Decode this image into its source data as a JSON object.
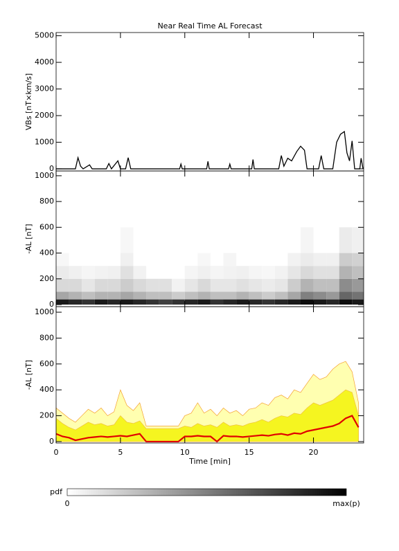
{
  "chart_data": [
    {
      "type": "line",
      "title": "Near Real Time AL Forecast",
      "ylabel": "VBs [nT×km/s]",
      "xlim": [
        0,
        23.9
      ],
      "xticks": [
        0,
        5,
        10,
        15,
        20
      ],
      "ylim": [
        -80,
        5120
      ],
      "yticks": [
        0,
        1000,
        2000,
        3000,
        4000,
        5000
      ],
      "x": [
        0,
        1.5,
        1.7,
        1.9,
        2.1,
        2.6,
        2.8,
        3.9,
        4.1,
        4.3,
        4.8,
        5.0,
        5.4,
        5.6,
        5.8,
        9.6,
        9.7,
        9.8,
        11.7,
        11.8,
        11.9,
        13.4,
        13.5,
        13.6,
        15.2,
        15.3,
        15.4,
        17.3,
        17.5,
        17.7,
        18.0,
        18.3,
        18.7,
        19.0,
        19.3,
        19.5,
        20.4,
        20.6,
        20.8,
        21.5,
        21.8,
        22.1,
        22.4,
        22.6,
        22.8,
        23.0,
        23.2,
        23.6,
        23.7,
        23.85
      ],
      "series": [
        {
          "color": "#000000",
          "values": [
            0,
            0,
            420,
            100,
            0,
            150,
            0,
            0,
            200,
            0,
            300,
            0,
            0,
            420,
            0,
            0,
            180,
            0,
            0,
            280,
            0,
            0,
            180,
            0,
            0,
            350,
            0,
            0,
            500,
            100,
            400,
            300,
            650,
            850,
            700,
            0,
            0,
            500,
            0,
            0,
            1000,
            1300,
            1400,
            600,
            300,
            1050,
            0,
            0,
            400,
            0
          ]
        }
      ]
    },
    {
      "type": "heatmap",
      "ylabel": "-AL [nT]",
      "xlim": [
        0,
        23.9
      ],
      "xticks": [
        0,
        5,
        10,
        15,
        20
      ],
      "ylim": [
        -16,
        1037
      ],
      "yticks": [
        0,
        200,
        400,
        600,
        800,
        1000
      ],
      "x_edges": [
        0,
        1,
        2,
        3,
        4,
        5,
        6,
        7,
        8,
        9,
        10,
        11,
        12,
        13,
        14,
        15,
        16,
        17,
        18,
        19,
        20,
        21,
        22,
        23,
        23.9
      ],
      "y_edges": [
        0,
        40,
        100,
        200,
        300,
        400,
        600
      ],
      "values": [
        [
          0.9,
          0.85,
          0.8,
          0.9,
          0.85,
          0.9,
          0.85,
          0.8,
          0.75,
          0.8,
          0.85,
          0.9,
          0.8,
          0.85,
          0.9,
          0.85,
          0.8,
          0.85,
          0.9,
          0.95,
          0.9,
          0.85,
          0.95,
          0.9
        ],
        [
          0.35,
          0.3,
          0.25,
          0.3,
          0.3,
          0.35,
          0.3,
          0.25,
          0.25,
          0.2,
          0.25,
          0.3,
          0.25,
          0.25,
          0.3,
          0.25,
          0.2,
          0.25,
          0.35,
          0.5,
          0.45,
          0.4,
          0.6,
          0.55
        ],
        [
          0.15,
          0.15,
          0.1,
          0.15,
          0.15,
          0.2,
          0.15,
          0.12,
          0.12,
          0.05,
          0.1,
          0.15,
          0.1,
          0.1,
          0.12,
          0.1,
          0.08,
          0.1,
          0.2,
          0.3,
          0.25,
          0.25,
          0.45,
          0.4
        ],
        [
          0.08,
          0.06,
          0.04,
          0.05,
          0.06,
          0.12,
          0.05,
          0,
          0,
          0,
          0.04,
          0.06,
          0.04,
          0.05,
          0.06,
          0.04,
          0.03,
          0.05,
          0.1,
          0.15,
          0.12,
          0.12,
          0.3,
          0.25
        ],
        [
          0.03,
          0,
          0,
          0,
          0,
          0.06,
          0,
          0,
          0,
          0,
          0,
          0.03,
          0,
          0.04,
          0,
          0,
          0,
          0,
          0.05,
          0.08,
          0.06,
          0.06,
          0.2,
          0.18
        ],
        [
          0,
          0,
          0,
          0,
          0,
          0.03,
          0,
          0,
          0,
          0,
          0,
          0,
          0,
          0,
          0,
          0,
          0,
          0,
          0,
          0.04,
          0,
          0,
          0.08,
          0.06
        ]
      ],
      "colorbar": {
        "label": "pdf",
        "min_label": "0",
        "max_label": "max(p)"
      }
    },
    {
      "type": "area",
      "ylabel": "-AL [nT]",
      "xlabel": "Time [min]",
      "xlim": [
        0,
        23.9
      ],
      "xticks": [
        0,
        5,
        10,
        15,
        20
      ],
      "ylim": [
        -11,
        1043
      ],
      "yticks": [
        0,
        200,
        400,
        600,
        800,
        1000
      ],
      "x": [
        0,
        0.5,
        1,
        1.5,
        2,
        2.5,
        3,
        3.5,
        4,
        4.5,
        5,
        5.5,
        6,
        6.5,
        7,
        7.5,
        8,
        8.5,
        9,
        9.5,
        10,
        10.5,
        11,
        11.5,
        12,
        12.5,
        13,
        13.5,
        14,
        14.5,
        15,
        15.5,
        16,
        16.5,
        17,
        17.5,
        18,
        18.5,
        19,
        19.5,
        20,
        20.5,
        21,
        21.5,
        22,
        22.5,
        23,
        23.5
      ],
      "series": [
        {
          "style": "fill",
          "color": "#ffffb0",
          "edge": "#f5a030",
          "values": [
            260,
            220,
            180,
            150,
            200,
            250,
            220,
            260,
            200,
            230,
            400,
            280,
            240,
            300,
            120,
            120,
            120,
            120,
            120,
            120,
            200,
            220,
            300,
            220,
            250,
            200,
            260,
            220,
            240,
            200,
            250,
            260,
            300,
            280,
            340,
            360,
            330,
            400,
            380,
            450,
            520,
            480,
            500,
            560,
            600,
            620,
            540,
            300
          ]
        },
        {
          "style": "fill",
          "color": "#f5f520",
          "edge": "#f0c040",
          "values": [
            180,
            140,
            110,
            90,
            120,
            150,
            130,
            140,
            120,
            130,
            200,
            150,
            140,
            160,
            100,
            100,
            100,
            100,
            100,
            100,
            120,
            110,
            140,
            120,
            130,
            110,
            150,
            120,
            130,
            120,
            140,
            150,
            170,
            150,
            180,
            200,
            190,
            220,
            210,
            260,
            300,
            280,
            300,
            320,
            360,
            400,
            380,
            200
          ]
        },
        {
          "style": "line",
          "color": "#e00000",
          "values": [
            60,
            40,
            30,
            10,
            20,
            30,
            35,
            40,
            35,
            40,
            45,
            40,
            50,
            60,
            0,
            0,
            0,
            0,
            0,
            0,
            40,
            40,
            45,
            40,
            40,
            0,
            45,
            40,
            40,
            35,
            40,
            45,
            50,
            45,
            55,
            60,
            50,
            65,
            60,
            80,
            90,
            100,
            110,
            120,
            140,
            180,
            200,
            110
          ]
        }
      ]
    }
  ]
}
